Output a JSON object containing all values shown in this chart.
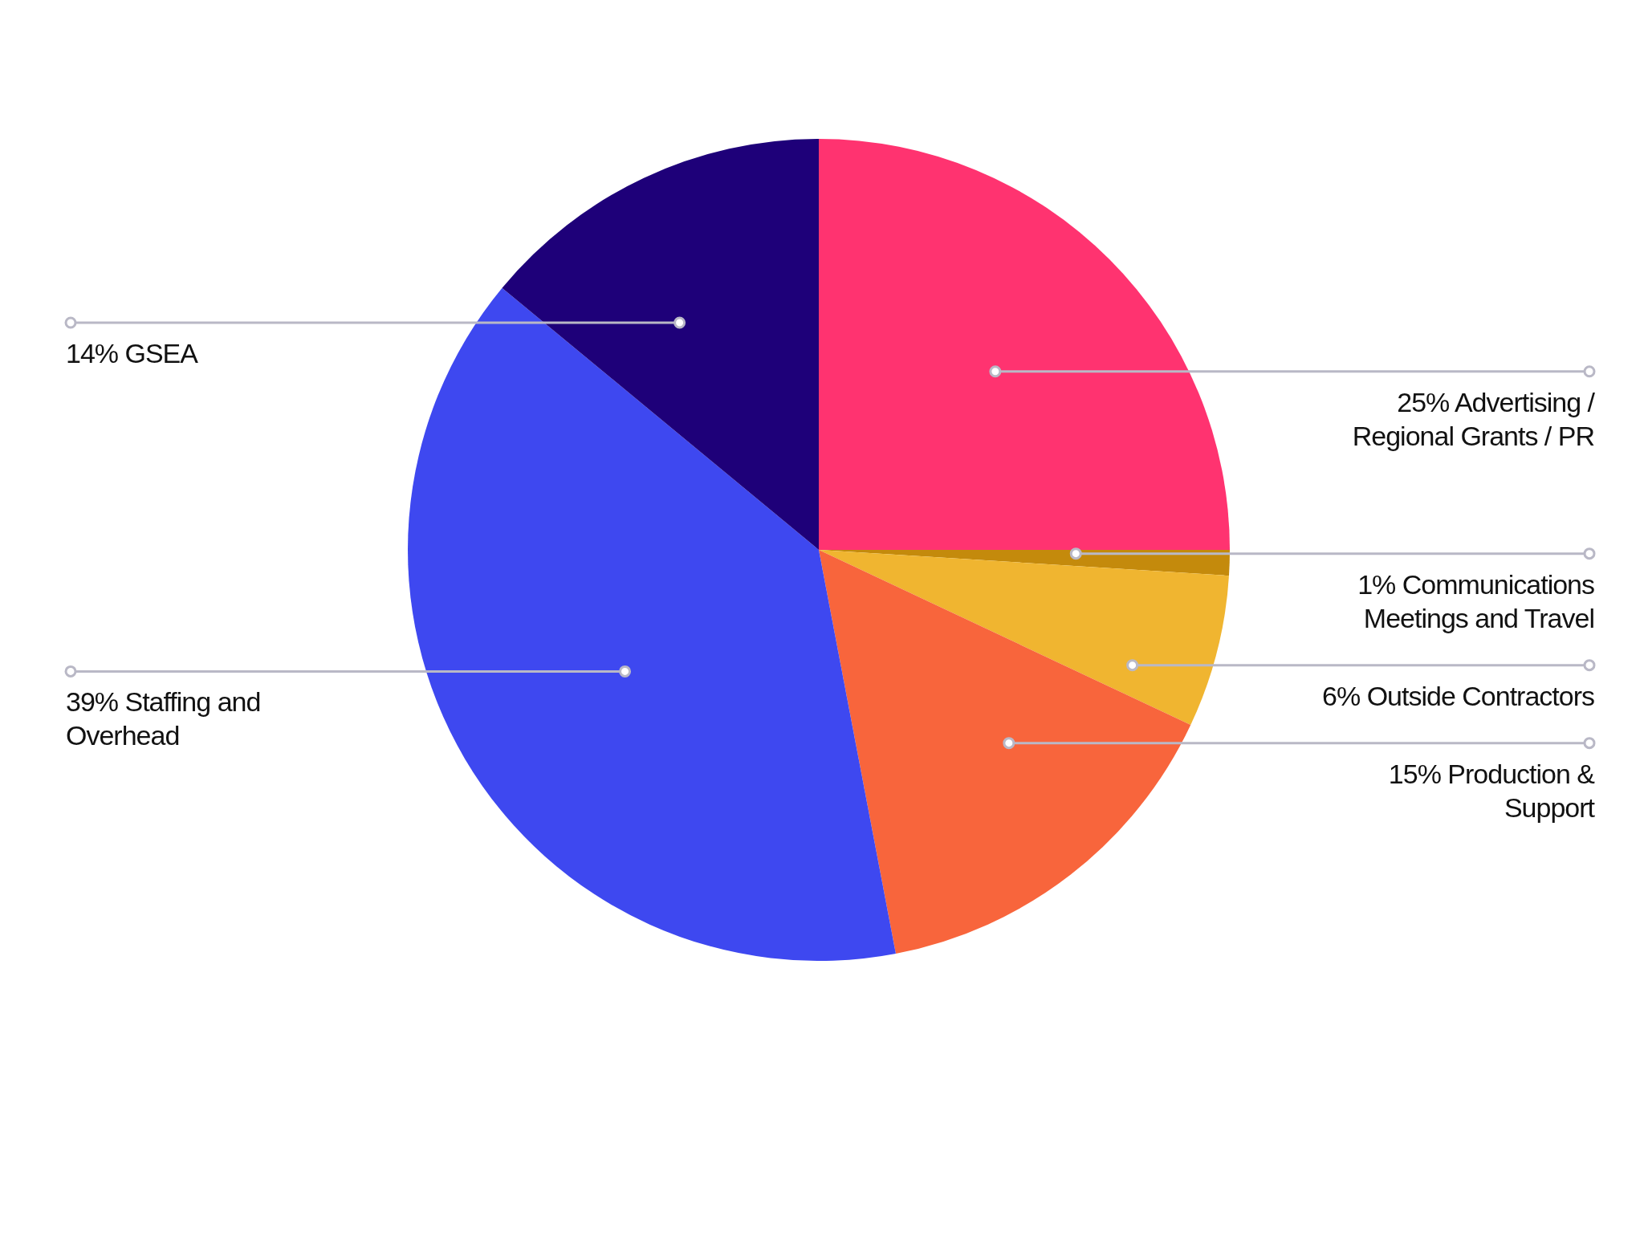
{
  "chart_data": {
    "type": "pie",
    "categories": [
      "Advertising / Regional Grants / PR",
      "Communications Meetings and Travel",
      "Outside Contractors",
      "Production & Support",
      "Staffing and Overhead",
      "GSEA"
    ],
    "values": [
      25,
      1,
      6,
      15,
      39,
      14
    ],
    "value_labels": [
      "25%",
      "1%",
      "6%",
      "15%",
      "39%",
      "14%"
    ],
    "colors": [
      "#ff3370",
      "#c48a0c",
      "#f0b530",
      "#f8653c",
      "#3e48f0",
      "#1e0079"
    ]
  }
}
